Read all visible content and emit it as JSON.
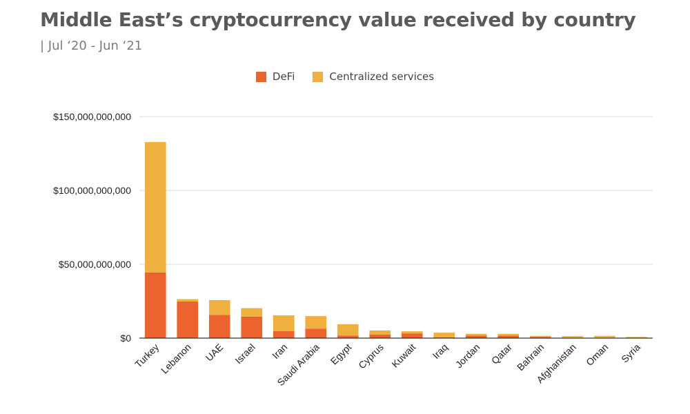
{
  "header": {
    "title": "Middle East’s cryptocurrency value received by country",
    "subtitle": "| Jul ‘20 - Jun ‘21"
  },
  "colors": {
    "defi": "#eb6430",
    "centralized": "#f0b03f",
    "grid": "#d9d9d9",
    "axis": "#333333",
    "text": "#5a5a5a"
  },
  "chart_data": {
    "type": "bar",
    "stacked": true,
    "title": "Middle East’s cryptocurrency value received by country",
    "subtitle": "| Jul ‘20 - Jun ‘21",
    "legend_position": "top-center",
    "grid": true,
    "ylim": [
      0,
      150000000000
    ],
    "yticks": [
      0,
      50000000000,
      100000000000,
      150000000000
    ],
    "ytick_labels": [
      "$0",
      "$50,000,000,000",
      "$100,000,000,000",
      "$150,000,000,000"
    ],
    "categories": [
      "Turkey",
      "Lebanon",
      "UAE",
      "Israel",
      "Iran",
      "Saudi Arabia",
      "Egypt",
      "Cyprus",
      "Kuwait",
      "Iraq",
      "Jordan",
      "Qatar",
      "Bahrain",
      "Afghanistan",
      "Oman",
      "Syria"
    ],
    "series": [
      {
        "name": "DeFi",
        "values": [
          44500000000,
          24800000000,
          15700000000,
          14600000000,
          4800000000,
          6400000000,
          1700000000,
          2400000000,
          3200000000,
          500000000,
          1700000000,
          1700000000,
          700000000,
          300000000,
          300000000,
          100000000
        ]
      },
      {
        "name": "Centralized services",
        "values": [
          88300000000,
          1600000000,
          10000000000,
          5700000000,
          10600000000,
          8500000000,
          7700000000,
          2800000000,
          1400000000,
          3200000000,
          1200000000,
          1200000000,
          800000000,
          1000000000,
          1200000000,
          700000000
        ]
      }
    ]
  }
}
